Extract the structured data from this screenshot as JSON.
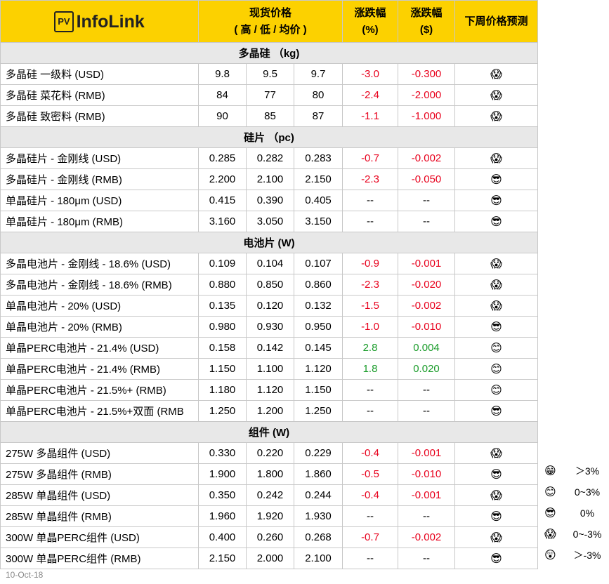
{
  "header": {
    "logo_box": "PV",
    "logo_text": "InfoLink",
    "price_title": "现货价格",
    "price_subtitle": "( 高 / 低 / 均价 )",
    "pct_title": "涨跌幅",
    "pct_unit": "(%)",
    "usd_title": "涨跌幅",
    "usd_unit": "($)",
    "forecast_title": "下周价格预测"
  },
  "sections": [
    {
      "title": "多晶硅 （kg)",
      "rows": [
        {
          "name": "多晶硅 一级料 (USD)",
          "high": "9.8",
          "low": "9.5",
          "avg": "9.7",
          "pct": "-3.0",
          "usd": "-0.300",
          "forecast": "😱"
        },
        {
          "name": "多晶硅 菜花料 (RMB)",
          "high": "84",
          "low": "77",
          "avg": "80",
          "pct": "-2.4",
          "usd": "-2.000",
          "forecast": "😱"
        },
        {
          "name": "多晶硅 致密料 (RMB)",
          "high": "90",
          "low": "85",
          "avg": "87",
          "pct": "-1.1",
          "usd": "-1.000",
          "forecast": "😱"
        }
      ]
    },
    {
      "title": "硅片 （pc)",
      "rows": [
        {
          "name": "多晶硅片 - 金刚线 (USD)",
          "high": "0.285",
          "low": "0.282",
          "avg": "0.283",
          "pct": "-0.7",
          "usd": "-0.002",
          "forecast": "😱"
        },
        {
          "name": "多晶硅片 - 金刚线 (RMB)",
          "high": "2.200",
          "low": "2.100",
          "avg": "2.150",
          "pct": "-2.3",
          "usd": "-0.050",
          "forecast": "😎"
        },
        {
          "name": "单晶硅片 - 180μm (USD)",
          "high": "0.415",
          "low": "0.390",
          "avg": "0.405",
          "pct": "--",
          "usd": "--",
          "forecast": "😎"
        },
        {
          "name": "单晶硅片 - 180μm (RMB)",
          "high": "3.160",
          "low": "3.050",
          "avg": "3.150",
          "pct": "--",
          "usd": "--",
          "forecast": "😎"
        }
      ]
    },
    {
      "title": "电池片 (W)",
      "rows": [
        {
          "name": "多晶电池片 - 金刚线 - 18.6% (USD)",
          "high": "0.109",
          "low": "0.104",
          "avg": "0.107",
          "pct": "-0.9",
          "usd": "-0.001",
          "forecast": "😱"
        },
        {
          "name": "多晶电池片 - 金刚线 - 18.6% (RMB)",
          "high": "0.880",
          "low": "0.850",
          "avg": "0.860",
          "pct": "-2.3",
          "usd": "-0.020",
          "forecast": "😱"
        },
        {
          "name": "单晶电池片 - 20% (USD)",
          "high": "0.135",
          "low": "0.120",
          "avg": "0.132",
          "pct": "-1.5",
          "usd": "-0.002",
          "forecast": "😱"
        },
        {
          "name": "单晶电池片 - 20% (RMB)",
          "high": "0.980",
          "low": "0.930",
          "avg": "0.950",
          "pct": "-1.0",
          "usd": "-0.010",
          "forecast": "😎"
        },
        {
          "name": "单晶PERC电池片 - 21.4% (USD)",
          "high": "0.158",
          "low": "0.142",
          "avg": "0.145",
          "pct": "2.8",
          "usd": "0.004",
          "forecast": "😊"
        },
        {
          "name": "单晶PERC电池片 - 21.4% (RMB)",
          "high": "1.150",
          "low": "1.100",
          "avg": "1.120",
          "pct": "1.8",
          "usd": "0.020",
          "forecast": "😊"
        },
        {
          "name": "单晶PERC电池片 - 21.5%+ (RMB)",
          "high": "1.180",
          "low": "1.120",
          "avg": "1.150",
          "pct": "--",
          "usd": "--",
          "forecast": "😊"
        },
        {
          "name": "单晶PERC电池片 - 21.5%+双面 (RMB",
          "high": "1.250",
          "low": "1.200",
          "avg": "1.250",
          "pct": "--",
          "usd": "--",
          "forecast": "😎"
        }
      ]
    },
    {
      "title": "组件 (W)",
      "rows": [
        {
          "name": "275W 多晶组件 (USD)",
          "high": "0.330",
          "low": "0.220",
          "avg": "0.229",
          "pct": "-0.4",
          "usd": "-0.001",
          "forecast": "😱"
        },
        {
          "name": "275W 多晶组件 (RMB)",
          "high": "1.900",
          "low": "1.800",
          "avg": "1.860",
          "pct": "-0.5",
          "usd": "-0.010",
          "forecast": "😎"
        },
        {
          "name": "285W 单晶组件 (USD)",
          "high": "0.350",
          "low": "0.242",
          "avg": "0.244",
          "pct": "-0.4",
          "usd": "-0.001",
          "forecast": "😱"
        },
        {
          "name": "285W 单晶组件 (RMB)",
          "high": "1.960",
          "low": "1.920",
          "avg": "1.930",
          "pct": "--",
          "usd": "--",
          "forecast": "😎"
        },
        {
          "name": "300W 单晶PERC组件 (USD)",
          "high": "0.400",
          "low": "0.260",
          "avg": "0.268",
          "pct": "-0.7",
          "usd": "-0.002",
          "forecast": "😱"
        },
        {
          "name": "300W 单晶PERC组件 (RMB)",
          "high": "2.150",
          "low": "2.000",
          "avg": "2.100",
          "pct": "--",
          "usd": "--",
          "forecast": "😎"
        }
      ]
    }
  ],
  "legend": [
    {
      "icon": "😁",
      "label": "＞3%"
    },
    {
      "icon": "😊",
      "label": "0~3%"
    },
    {
      "icon": "😎",
      "label": "0%"
    },
    {
      "icon": "😱",
      "label": "0~-3%"
    },
    {
      "icon": "😲",
      "label": "＞-3%"
    }
  ],
  "date": "10-Oct-18"
}
